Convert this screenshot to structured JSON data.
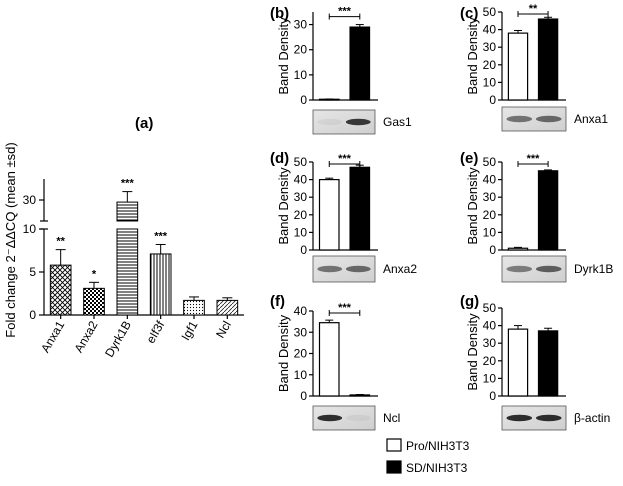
{
  "chart_data": [
    {
      "id": "a",
      "panel_label": "(a)",
      "type": "bar",
      "ylabel": "Fold change 2⁻ΔΔCQ (mean ±sd)",
      "categories": [
        "Anxa1",
        "Anxa2",
        "Dyrk1B",
        "eIf3f",
        "Igf1",
        "Ncl"
      ],
      "values": [
        5.8,
        3.1,
        29.5,
        7.1,
        1.7,
        1.7
      ],
      "errors": [
        1.8,
        0.7,
        2.5,
        1.1,
        0.4,
        0.3
      ],
      "significance": [
        "**",
        "*",
        "***",
        "***",
        "",
        ""
      ],
      "patterns": [
        "crosshatch",
        "checker",
        "hlines",
        "vlines",
        "dots",
        "diag"
      ],
      "yticks": [
        "0",
        "5",
        "10",
        "30"
      ],
      "ylim": [
        0,
        35
      ],
      "axis_break": [
        10,
        25
      ]
    },
    {
      "id": "b",
      "panel_label": "(b)",
      "type": "bar",
      "ylabel": "Band Density",
      "yticks": [
        "0",
        "10",
        "20",
        "30"
      ],
      "ylim": [
        0,
        35
      ],
      "series": [
        {
          "name": "Pro/NIH3T3",
          "value": 0.3,
          "error": 0.1
        },
        {
          "name": "SD/NIH3T3",
          "value": 29,
          "error": 1
        }
      ],
      "significance": "***",
      "blot_label": "Gas1",
      "blot_bands": [
        0.05,
        0.85
      ]
    },
    {
      "id": "c",
      "panel_label": "(c)",
      "type": "bar",
      "ylabel": "Band Density",
      "yticks": [
        "0",
        "10",
        "20",
        "30",
        "40",
        "50"
      ],
      "ylim": [
        0,
        50
      ],
      "series": [
        {
          "name": "Pro/NIH3T3",
          "value": 38,
          "error": 1.5
        },
        {
          "name": "SD/NIH3T3",
          "value": 46,
          "error": 1
        }
      ],
      "significance": "**",
      "blot_label": "Anxa1",
      "blot_bands": [
        0.55,
        0.6
      ]
    },
    {
      "id": "d",
      "panel_label": "(d)",
      "type": "bar",
      "ylabel": "Band Density",
      "yticks": [
        "0",
        "10",
        "20",
        "30",
        "40",
        "50"
      ],
      "ylim": [
        0,
        50
      ],
      "series": [
        {
          "name": "Pro/NIH3T3",
          "value": 40,
          "error": 0.8
        },
        {
          "name": "SD/NIH3T3",
          "value": 47,
          "error": 1.2
        }
      ],
      "significance": "***",
      "blot_label": "Anxa2",
      "blot_bands": [
        0.55,
        0.6
      ]
    },
    {
      "id": "e",
      "panel_label": "(e)",
      "type": "bar",
      "ylabel": "Band Density",
      "yticks": [
        "0",
        "10",
        "20",
        "30",
        "40",
        "50"
      ],
      "ylim": [
        0,
        50
      ],
      "series": [
        {
          "name": "Pro/NIH3T3",
          "value": 1,
          "error": 0.5
        },
        {
          "name": "SD/NIH3T3",
          "value": 45,
          "error": 0.5
        }
      ],
      "significance": "***",
      "blot_label": "Dyrk1B",
      "blot_bands": [
        0.5,
        0.65
      ]
    },
    {
      "id": "f",
      "panel_label": "(f)",
      "type": "bar",
      "ylabel": "Band Density",
      "yticks": [
        "0",
        "10",
        "20",
        "30",
        "40"
      ],
      "ylim": [
        0,
        40
      ],
      "series": [
        {
          "name": "Pro/NIH3T3",
          "value": 34.5,
          "error": 1.2
        },
        {
          "name": "SD/NIH3T3",
          "value": 0.5,
          "error": 0.2
        }
      ],
      "significance": "***",
      "blot_label": "Ncl",
      "blot_bands": [
        0.9,
        0.05
      ]
    },
    {
      "id": "g",
      "panel_label": "(g)",
      "type": "bar",
      "ylabel": "Band Density",
      "yticks": [
        "0",
        "10",
        "20",
        "30",
        "40",
        "50"
      ],
      "ylim": [
        0,
        50
      ],
      "series": [
        {
          "name": "Pro/NIH3T3",
          "value": 38,
          "error": 2
        },
        {
          "name": "SD/NIH3T3",
          "value": 37,
          "error": 1.5
        }
      ],
      "significance": "",
      "blot_label": "β-actin",
      "blot_bands": [
        0.9,
        0.9
      ]
    }
  ],
  "legend": {
    "items": [
      {
        "name": "Pro/NIH3T3",
        "color": "#ffffff"
      },
      {
        "name": "SD/NIH3T3",
        "color": "#000000"
      }
    ],
    "placement": "bottom-center"
  },
  "colors": {
    "bar_fill": "#000000",
    "bar_open": "#ffffff",
    "axis": "#000000"
  }
}
